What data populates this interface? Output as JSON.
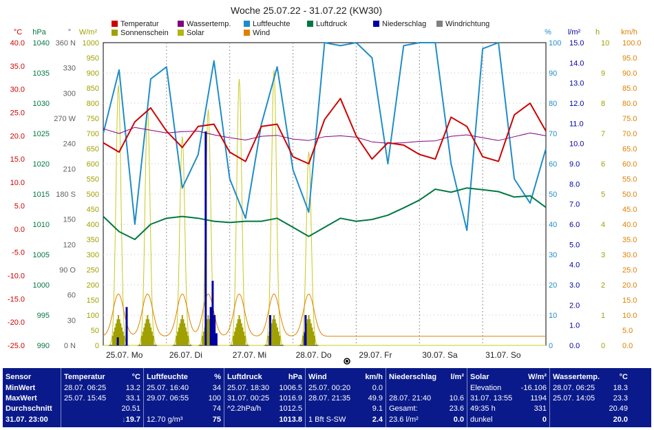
{
  "chart_data": {
    "type": "line",
    "title": "Woche 25.07.22 - 31.07.22 (KW30)",
    "legend": [
      {
        "name": "Temperatur",
        "color": "#cc0000"
      },
      {
        "name": "Wassertemp.",
        "color": "#800080"
      },
      {
        "name": "Luftfeuchte",
        "color": "#1e8cc8"
      },
      {
        "name": "Luftdruck",
        "color": "#007840"
      },
      {
        "name": "Niederschlag",
        "color": "#0000a0"
      },
      {
        "name": "Windrichtung",
        "color": "#808080"
      },
      {
        "name": "Sonnenschein",
        "color": "#a0a000"
      },
      {
        "name": "Solar",
        "color": "#b4b414"
      },
      {
        "name": "Wind",
        "color": "#e08000"
      }
    ],
    "axes": [
      {
        "unit": "°C",
        "color": "#cc0000",
        "ticks": [
          "40.0",
          "35.0",
          "30.0",
          "25.0",
          "20.0",
          "15.0",
          "10.0",
          "5.0",
          "0.0",
          "-5.0",
          "-10.0",
          "-15.0",
          "-20.0",
          "-25.0"
        ]
      },
      {
        "unit": "hPa",
        "color": "#007840",
        "ticks": [
          "1040",
          "1035",
          "1030",
          "1025",
          "1020",
          "1015",
          "1010",
          "1005",
          "1000",
          "995",
          "990"
        ]
      },
      {
        "unit": "°",
        "color": "#606060",
        "ticks": [
          "360 N",
          "330",
          "300",
          "270 W",
          "240",
          "210",
          "180 S",
          "150",
          "120",
          "90 O",
          "60",
          "30",
          "0 N"
        ]
      },
      {
        "unit": "W/m²",
        "color": "#a0a000",
        "ticks": [
          "1000",
          "950",
          "900",
          "850",
          "800",
          "750",
          "700",
          "650",
          "600",
          "550",
          "500",
          "450",
          "400",
          "350",
          "300",
          "250",
          "200",
          "150",
          "100",
          "50",
          "0"
        ]
      },
      {
        "unit": "%",
        "color": "#1e8cc8",
        "ticks": [
          "100",
          "90",
          "80",
          "70",
          "60",
          "50",
          "40",
          "30",
          "20",
          "10",
          "0"
        ]
      },
      {
        "unit": "l/m²",
        "color": "#0000a0",
        "ticks": [
          "15.0",
          "14.0",
          "13.0",
          "12.0",
          "11.0",
          "10.0",
          "9.0",
          "8.0",
          "7.0",
          "6.0",
          "5.0",
          "4.0",
          "3.0",
          "2.0",
          "1.0",
          "0.0"
        ]
      },
      {
        "unit": "h",
        "color": "#a0a000",
        "ticks": [
          "10",
          "9",
          "8",
          "7",
          "6",
          "5",
          "4",
          "3",
          "2",
          "1",
          "0"
        ]
      },
      {
        "unit": "km/h",
        "color": "#e08000",
        "ticks": [
          "100.0",
          "95.0",
          "90.0",
          "85.0",
          "80.0",
          "75.0",
          "70.0",
          "65.0",
          "60.0",
          "55.0",
          "50.0",
          "45.0",
          "40.0",
          "35.0",
          "30.0",
          "25.0",
          "20.0",
          "15.0",
          "10.0",
          "5.0",
          "0.0"
        ]
      }
    ],
    "x_labels": [
      "25.07. Mo",
      "26.07. Di",
      "27.07. Mi",
      "28.07. Do",
      "29.07. Fr",
      "30.07. Sa",
      "31.07. So"
    ],
    "temperature": [
      18.5,
      16.5,
      23.0,
      26.0,
      21.0,
      17.5,
      22.0,
      22.5,
      16.5,
      14.5,
      22.0,
      22.5,
      15.5,
      14.0,
      23.5,
      28.0,
      20.0,
      15.0,
      18.5,
      18.0,
      16.0,
      15.0,
      24.0,
      22.0,
      15.5,
      14.5,
      24.5,
      27.0,
      21.0
    ],
    "water_temp": [
      21.5,
      20.5,
      21.8,
      21.2,
      20.6,
      20.9,
      21.0,
      20.2,
      19.6,
      19.1,
      19.9,
      20.1,
      19.3,
      19.0,
      19.8,
      20.0,
      19.7,
      18.7,
      18.4,
      18.5,
      18.8,
      18.9,
      19.9,
      20.2,
      19.6,
      19.0,
      19.8,
      20.6,
      20.0
    ],
    "humidity": [
      70,
      91,
      40,
      88,
      92,
      52,
      63,
      94,
      55,
      42,
      73,
      92,
      58,
      44,
      100,
      99,
      100,
      95,
      60,
      99,
      100,
      100,
      60,
      38,
      98,
      100,
      55,
      47,
      65
    ],
    "pressure": [
      1011.3,
      1008.8,
      1007.5,
      1010.0,
      1011.0,
      1011.3,
      1011.0,
      1010.5,
      1010.3,
      1010.5,
      1010.5,
      1011.0,
      1009.5,
      1008.0,
      1009.5,
      1011.0,
      1010.5,
      1010.8,
      1011.5,
      1012.7,
      1014.0,
      1015.8,
      1015.3,
      1016.0,
      1015.7,
      1015.4,
      1014.5,
      1014.7,
      1012.8
    ],
    "precip_x": [
      0.23,
      0.37,
      1.62,
      1.7,
      1.73,
      1.76,
      1.79,
      2.64,
      3.19,
      3.2
    ],
    "precip_y": [
      0.4,
      1.9,
      10.6,
      1.9,
      3.2,
      1.5,
      0.6,
      1.5,
      0.6,
      1.5
    ],
    "solar_peaks": [
      {
        "x": 0.24,
        "y": 860
      },
      {
        "x": 0.7,
        "y": 790
      },
      {
        "x": 1.25,
        "y": 690
      },
      {
        "x": 1.66,
        "y": 780
      },
      {
        "x": 2.15,
        "y": 880
      },
      {
        "x": 2.7,
        "y": 910
      },
      {
        "x": 3.25,
        "y": 640
      }
    ]
  },
  "header_row": {
    "sensor": "Sensor",
    "temp": "Temperatur",
    "temp_unit": "°C",
    "hum": "Luftfeuchte",
    "hum_unit": "%",
    "press": "Luftdruck",
    "press_unit": "hPa",
    "wind": "Wind",
    "wind_unit": "km/h",
    "rain": "Niederschlag",
    "rain_unit": "l/m²",
    "solar": "Solar",
    "solar_unit": "W/m²",
    "water": "Wassertemp.",
    "water_unit": "°C"
  },
  "row_labels": {
    "min": "MinWert",
    "max": "MaxWert",
    "avg": "Durchschnitt",
    "now": "31.07. 23:00"
  },
  "temp": {
    "min_date": "28.07. 06:25",
    "min": "13.2",
    "max_date": "25.07. 15:45",
    "max": "33.1",
    "avg": "20.51",
    "now": "19.7",
    "trend": "↓"
  },
  "hum": {
    "min_date": "25.07. 16:40",
    "min": "34",
    "max_date": "29.07. 06:55",
    "max": "100",
    "avg": "74",
    "abs": "12.70 g/m³",
    "now": "75"
  },
  "press": {
    "min_date": "25.07. 18:30",
    "min": "1006.5",
    "max_date": "31.07. 00:25",
    "max": "1016.9",
    "trend": "^2.2hPa/h",
    "avg": "1012.5",
    "now": "1013.8"
  },
  "wind": {
    "min_date": "25.07. 00:20",
    "min": "0.0",
    "max_date": "28.07. 21:35",
    "max": "49.9",
    "avg": "9.1",
    "bft": "1 Bft S-SW",
    "now": "2.4"
  },
  "rain": {
    "max_date": "28.07. 21:40",
    "max": "10.6",
    "total_label": "Gesamt:",
    "total": "23.6",
    "sum": "23.6 l/m²",
    "now": "0.0"
  },
  "solar": {
    "min_label": "Elevation",
    "min": "-16.106",
    "max_date": "31.07. 13:55",
    "max": "1194",
    "hours": "49:35 h",
    "avg": "331",
    "state": "dunkel",
    "now": "0"
  },
  "water": {
    "min_date": "28.07. 06:25",
    "min": "18.3",
    "max_date": "25.07. 14:05",
    "max": "23.3",
    "avg": "20.49",
    "now": "20.0"
  }
}
